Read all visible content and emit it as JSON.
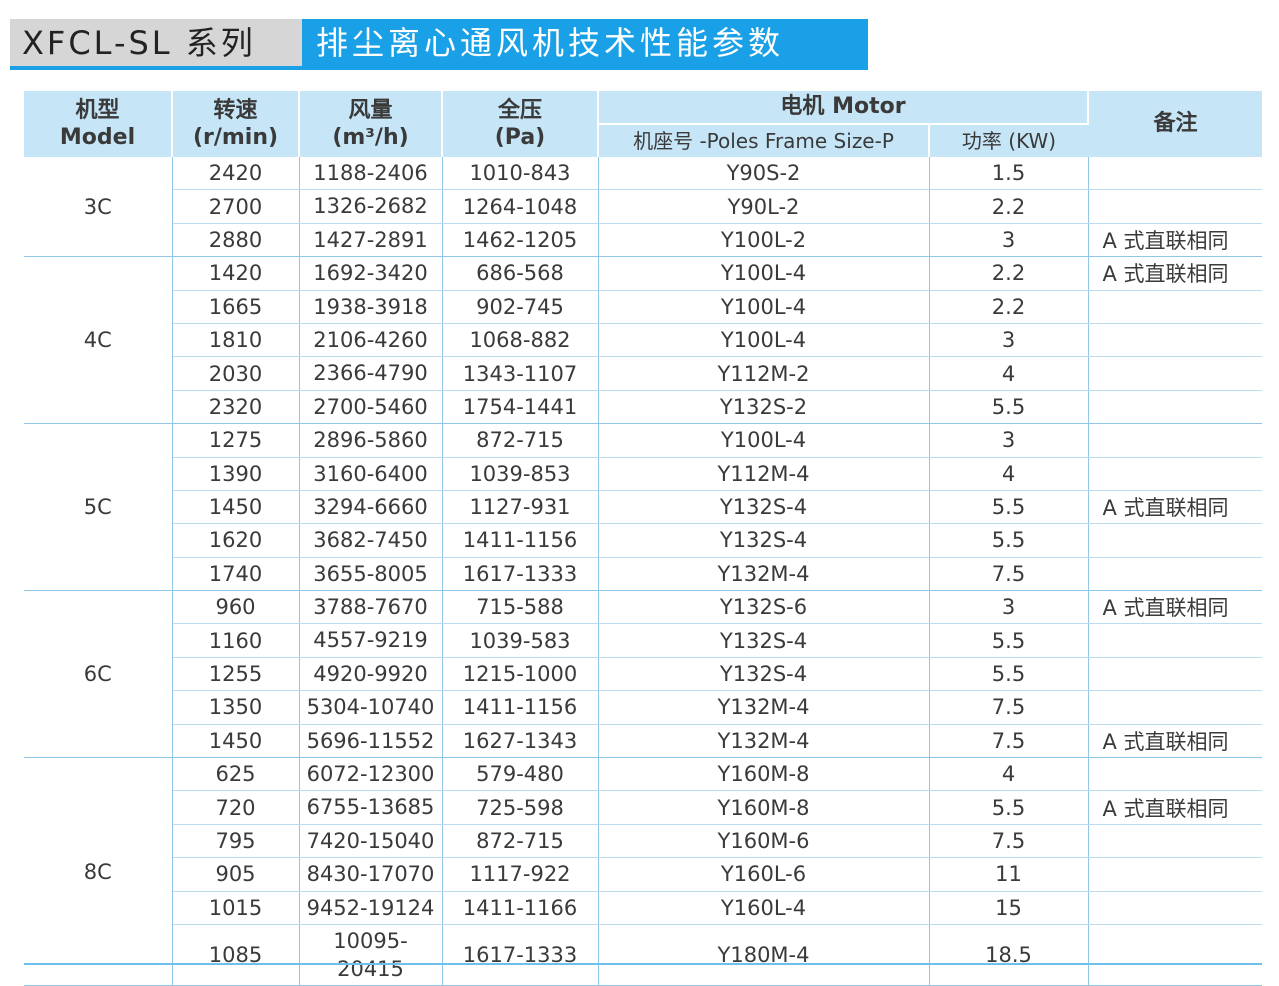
{
  "title": {
    "series": "XFCL-SL 系列",
    "name": "排尘离心通风机技术性能参数"
  },
  "headers": {
    "model_cn": "机型",
    "model_en": "Model",
    "speed_cn": "转速",
    "speed_en": "(r/min)",
    "flow_cn": "风量",
    "flow_en": "(m³/h)",
    "pressure_cn": "全压",
    "pressure_en": "(Pa)",
    "motor": "电机 Motor",
    "motor_frame": "机座号 -Poles Frame Size-P",
    "motor_power": "功率 (KW)",
    "remark": "备注"
  },
  "groups": [
    {
      "model": "3C",
      "rows": [
        {
          "speed": "2420",
          "flow": "1188-2406",
          "pressure": "1010-843",
          "frame": "Y90S-2",
          "power": "1.5",
          "note": ""
        },
        {
          "speed": "2700",
          "flow": "1326-2682",
          "pressure": "1264-1048",
          "frame": "Y90L-2",
          "power": "2.2",
          "note": ""
        },
        {
          "speed": "2880",
          "flow": "1427-2891",
          "pressure": "1462-1205",
          "frame": "Y100L-2",
          "power": "3",
          "note": "A 式直联相同"
        }
      ]
    },
    {
      "model": "4C",
      "rows": [
        {
          "speed": "1420",
          "flow": "1692-3420",
          "pressure": "686-568",
          "frame": "Y100L-4",
          "power": "2.2",
          "note": "A 式直联相同"
        },
        {
          "speed": "1665",
          "flow": "1938-3918",
          "pressure": "902-745",
          "frame": "Y100L-4",
          "power": "2.2",
          "note": ""
        },
        {
          "speed": "1810",
          "flow": "2106-4260",
          "pressure": "1068-882",
          "frame": "Y100L-4",
          "power": "3",
          "note": ""
        },
        {
          "speed": "2030",
          "flow": "2366-4790",
          "pressure": "1343-1107",
          "frame": "Y112M-2",
          "power": "4",
          "note": ""
        },
        {
          "speed": "2320",
          "flow": "2700-5460",
          "pressure": "1754-1441",
          "frame": "Y132S-2",
          "power": "5.5",
          "note": ""
        }
      ]
    },
    {
      "model": "5C",
      "rows": [
        {
          "speed": "1275",
          "flow": "2896-5860",
          "pressure": "872-715",
          "frame": "Y100L-4",
          "power": "3",
          "note": ""
        },
        {
          "speed": "1390",
          "flow": "3160-6400",
          "pressure": "1039-853",
          "frame": "Y112M-4",
          "power": "4",
          "note": ""
        },
        {
          "speed": "1450",
          "flow": "3294-6660",
          "pressure": "1127-931",
          "frame": "Y132S-4",
          "power": "5.5",
          "note": "A 式直联相同"
        },
        {
          "speed": "1620",
          "flow": "3682-7450",
          "pressure": "1411-1156",
          "frame": "Y132S-4",
          "power": "5.5",
          "note": ""
        },
        {
          "speed": "1740",
          "flow": "3655-8005",
          "pressure": "1617-1333",
          "frame": "Y132M-4",
          "power": "7.5",
          "note": ""
        }
      ]
    },
    {
      "model": "6C",
      "rows": [
        {
          "speed": "960",
          "flow": "3788-7670",
          "pressure": "715-588",
          "frame": "Y132S-6",
          "power": "3",
          "note": "A 式直联相同"
        },
        {
          "speed": "1160",
          "flow": "4557-9219",
          "pressure": "1039-583",
          "frame": "Y132S-4",
          "power": "5.5",
          "note": ""
        },
        {
          "speed": "1255",
          "flow": "4920-9920",
          "pressure": "1215-1000",
          "frame": "Y132S-4",
          "power": "5.5",
          "note": ""
        },
        {
          "speed": "1350",
          "flow": "5304-10740",
          "pressure": "1411-1156",
          "frame": "Y132M-4",
          "power": "7.5",
          "note": ""
        },
        {
          "speed": "1450",
          "flow": "5696-11552",
          "pressure": "1627-1343",
          "frame": "Y132M-4",
          "power": "7.5",
          "note": "A 式直联相同"
        }
      ]
    },
    {
      "model": "8C",
      "rows": [
        {
          "speed": "625",
          "flow": "6072-12300",
          "pressure": "579-480",
          "frame": "Y160M-8",
          "power": "4",
          "note": ""
        },
        {
          "speed": "720",
          "flow": "6755-13685",
          "pressure": "725-598",
          "frame": "Y160M-8",
          "power": "5.5",
          "note": "A 式直联相同"
        },
        {
          "speed": "795",
          "flow": "7420-15040",
          "pressure": "872-715",
          "frame": "Y160M-6",
          "power": "7.5",
          "note": ""
        },
        {
          "speed": "905",
          "flow": "8430-17070",
          "pressure": "1117-922",
          "frame": "Y160L-6",
          "power": "11",
          "note": ""
        },
        {
          "speed": "1015",
          "flow": "9452-19124",
          "pressure": "1411-1166",
          "frame": "Y160L-4",
          "power": "15",
          "note": ""
        },
        {
          "speed": "1085",
          "flow": "10095-20415",
          "pressure": "1617-1333",
          "frame": "Y180M-4",
          "power": "18.5",
          "note": ""
        }
      ]
    }
  ],
  "colors": {
    "accent": "#1aa0e6",
    "header_bg": "#c6e5f7",
    "title_gray": "#d6d6d6"
  }
}
